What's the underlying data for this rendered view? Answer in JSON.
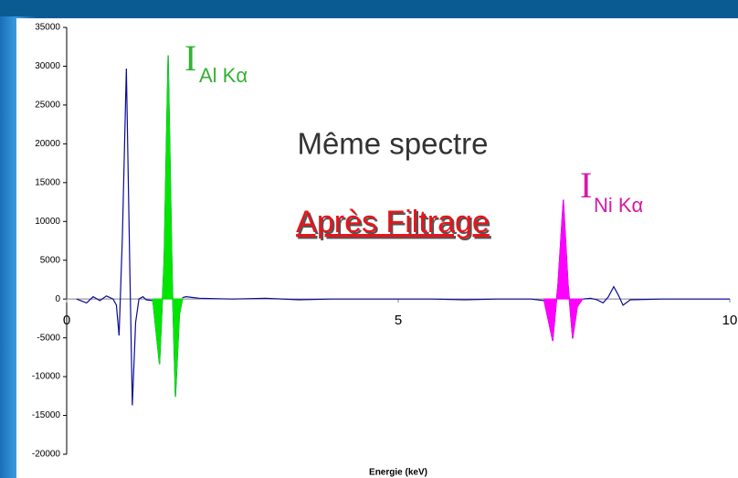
{
  "chart_data": {
    "type": "line",
    "xlabel": "Energie (keV)",
    "xlim": [
      0,
      10
    ],
    "xticks": [
      0,
      5,
      10
    ],
    "ylim": [
      -20000,
      35000
    ],
    "yticks": [
      -20000,
      -15000,
      -10000,
      -5000,
      0,
      5000,
      10000,
      15000,
      20000,
      25000,
      30000,
      35000
    ],
    "series": [
      {
        "color": "#0a0a9a",
        "fill": false,
        "x": [
          0.15,
          0.3,
          0.4,
          0.5,
          0.6,
          0.7,
          0.75,
          0.79,
          0.84,
          0.9,
          0.95,
          0.99,
          1.04,
          1.09,
          1.15,
          1.2,
          1.3,
          1.4,
          1.47,
          1.53,
          1.59,
          1.64,
          1.7,
          1.75,
          1.8,
          1.9,
          2.0,
          2.5,
          3.0,
          3.5,
          4.0,
          4.5,
          5.0,
          5.5,
          6.0,
          6.5,
          7.0,
          7.2,
          7.33,
          7.41,
          7.49,
          7.56,
          7.63,
          7.7,
          7.78,
          7.9,
          8.0,
          8.09,
          8.17,
          8.25,
          8.32,
          8.39,
          8.5,
          9.0,
          9.5,
          10.0
        ],
        "values": [
          0,
          -500,
          300,
          -200,
          400,
          0,
          -800,
          -4700,
          8000,
          29700,
          5000,
          -13700,
          -3000,
          0,
          300,
          -100,
          -200,
          -8400,
          5000,
          31400,
          3000,
          -12600,
          -2000,
          200,
          300,
          200,
          100,
          0,
          100,
          -100,
          0,
          0,
          0,
          0,
          -100,
          0,
          0,
          -200,
          -5400,
          2000,
          12800,
          2000,
          -5100,
          -1000,
          0,
          100,
          -100,
          -500,
          300,
          1600,
          500,
          -800,
          -100,
          0,
          0,
          0
        ]
      },
      {
        "color": "#00e600",
        "fill": true,
        "x": [
          1.3,
          1.4,
          1.47,
          1.53,
          1.59,
          1.64,
          1.7,
          1.75
        ],
        "values": [
          -200,
          -8400,
          5000,
          31400,
          3000,
          -12600,
          -2000,
          200
        ]
      },
      {
        "color": "#ff00ff",
        "fill": true,
        "x": [
          7.2,
          7.33,
          7.41,
          7.49,
          7.56,
          7.63,
          7.7,
          7.78
        ],
        "values": [
          -200,
          -5400,
          2000,
          12800,
          2000,
          -5100,
          -1000,
          0
        ]
      }
    ],
    "annotations": [
      {
        "text": "I",
        "sub": "Al Kα"
      },
      {
        "text": "Même spectre"
      },
      {
        "text": "Après Filtrage"
      },
      {
        "text": "I",
        "sub": "Ni Kα"
      }
    ]
  }
}
